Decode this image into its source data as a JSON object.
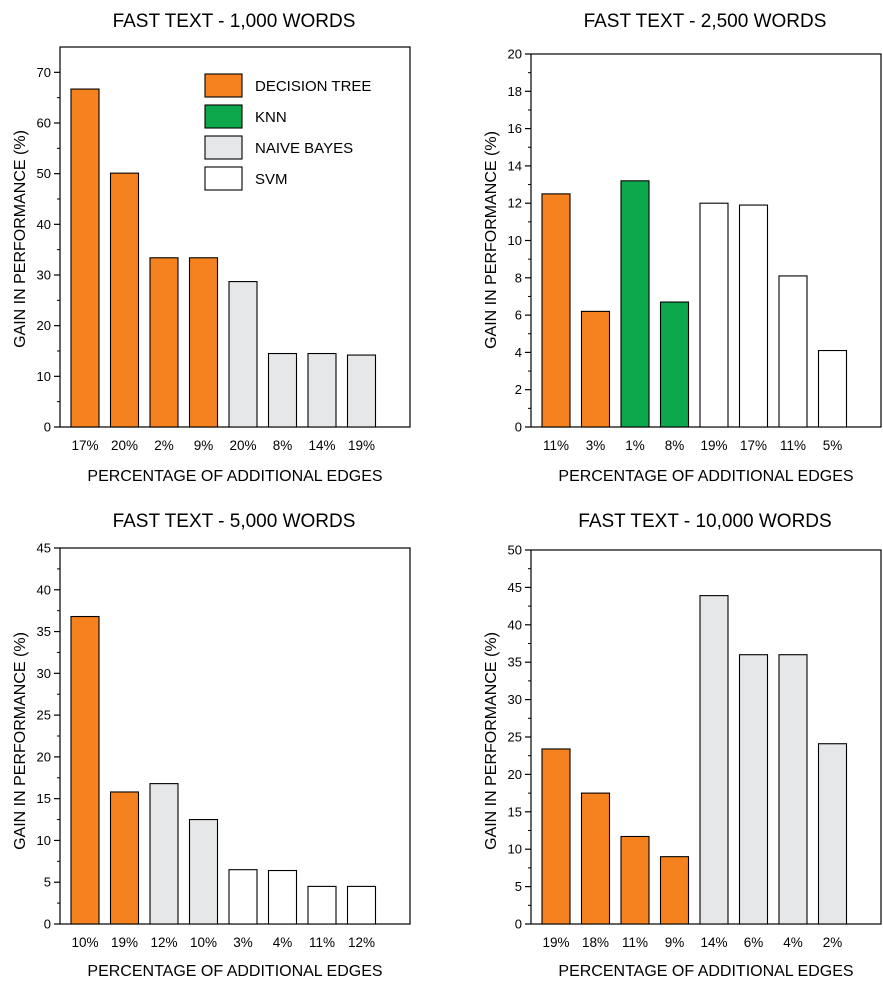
{
  "colors": {
    "DECISION TREE": "#f5821f",
    "KNN": "#0ca84b",
    "NAIVE BAYES": "#e6e7e8",
    "SVM": "#ffffff"
  },
  "legend": [
    "DECISION TREE",
    "KNN",
    "NAIVE BAYES",
    "SVM"
  ],
  "legend_placement": "top-right of first panel",
  "chart_data": [
    {
      "type": "bar",
      "title": "FAST TEXT - 1,000 WORDS",
      "xlabel": "PERCENTAGE OF ADDITIONAL EDGES",
      "ylabel": "GAIN IN PERFORMANCE (%)",
      "ylim": [
        0,
        75
      ],
      "yticks": [
        0,
        10,
        20,
        30,
        40,
        50,
        60,
        70
      ],
      "categories": [
        "17%",
        "20%",
        "2%",
        "9%",
        "20%",
        "8%",
        "14%",
        "19%"
      ],
      "values": [
        66.7,
        50.1,
        33.4,
        33.4,
        28.7,
        14.5,
        14.5,
        14.2
      ],
      "series_per_bar": [
        "DECISION TREE",
        "DECISION TREE",
        "DECISION TREE",
        "DECISION TREE",
        "NAIVE BAYES",
        "NAIVE BAYES",
        "NAIVE BAYES",
        "NAIVE BAYES"
      ],
      "grid": false
    },
    {
      "type": "bar",
      "title": "FAST TEXT - 2,500 WORDS",
      "xlabel": "PERCENTAGE OF ADDITIONAL EDGES",
      "ylabel": "GAIN IN PERFORMANCE (%)",
      "ylim": [
        0,
        20
      ],
      "yticks": [
        0,
        2,
        4,
        6,
        8,
        10,
        12,
        14,
        16,
        18,
        20
      ],
      "categories": [
        "11%",
        "3%",
        "1%",
        "8%",
        "19%",
        "17%",
        "11%",
        "5%"
      ],
      "values": [
        12.5,
        6.2,
        13.2,
        6.7,
        12.0,
        11.9,
        8.1,
        4.1
      ],
      "series_per_bar": [
        "DECISION TREE",
        "DECISION TREE",
        "KNN",
        "KNN",
        "SVM",
        "SVM",
        "SVM",
        "SVM"
      ],
      "grid": false
    },
    {
      "type": "bar",
      "title": "FAST TEXT - 5,000 WORDS",
      "xlabel": "PERCENTAGE OF ADDITIONAL EDGES",
      "ylabel": "GAIN IN PERFORMANCE (%)",
      "ylim": [
        0,
        45
      ],
      "yticks": [
        0,
        5,
        10,
        15,
        20,
        25,
        30,
        35,
        40,
        45
      ],
      "categories": [
        "10%",
        "19%",
        "12%",
        "10%",
        "3%",
        "4%",
        "11%",
        "12%"
      ],
      "values": [
        36.8,
        15.8,
        16.8,
        12.5,
        6.5,
        6.4,
        4.5,
        4.5
      ],
      "series_per_bar": [
        "DECISION TREE",
        "DECISION TREE",
        "NAIVE BAYES",
        "NAIVE BAYES",
        "SVM",
        "SVM",
        "SVM",
        "SVM"
      ],
      "grid": false
    },
    {
      "type": "bar",
      "title": "FAST TEXT - 10,000 WORDS",
      "xlabel": "PERCENTAGE OF ADDITIONAL EDGES",
      "ylabel": "GAIN IN PERFORMANCE (%)",
      "ylim": [
        0,
        50
      ],
      "yticks": [
        0,
        5,
        10,
        15,
        20,
        25,
        30,
        35,
        40,
        45,
        50
      ],
      "categories": [
        "19%",
        "18%",
        "11%",
        "9%",
        "14%",
        "6%",
        "4%",
        "2%"
      ],
      "values": [
        23.4,
        17.5,
        11.7,
        9.0,
        43.9,
        36.0,
        36.0,
        24.1
      ],
      "series_per_bar": [
        "DECISION TREE",
        "DECISION TREE",
        "DECISION TREE",
        "DECISION TREE",
        "NAIVE BAYES",
        "NAIVE BAYES",
        "NAIVE BAYES",
        "NAIVE BAYES"
      ],
      "grid": false
    }
  ]
}
